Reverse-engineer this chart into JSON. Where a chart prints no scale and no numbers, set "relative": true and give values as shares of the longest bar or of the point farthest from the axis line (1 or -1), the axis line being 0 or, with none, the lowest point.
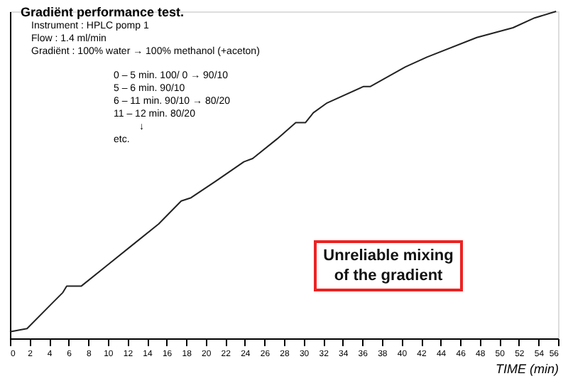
{
  "chart_data": {
    "type": "line",
    "relative": true,
    "title": "Gradiënt performance test.",
    "xlabel": "TIME (min)",
    "annotations": [
      "Instrument      : HPLC pomp 1",
      "Flow               : 1.4 ml/min",
      "Gradiënt          : 100% water → 100% methanol (+aceton)",
      "0 – 5 min.    100/ 0 → 90/10",
      "5 – 6 min.     90/10",
      "6 – 11 min.   90/10 → 80/20",
      "11 – 12 min.   80/20",
      "↓",
      "etc.",
      "Unreliable mixing of the gradient"
    ],
    "xlim": [
      0,
      56
    ],
    "xticks": [
      0,
      2,
      4,
      6,
      8,
      10,
      12,
      14,
      16,
      18,
      20,
      22,
      24,
      26,
      28,
      30,
      32,
      34,
      36,
      38,
      40,
      42,
      44,
      46,
      48,
      50,
      52,
      54,
      56
    ],
    "grid": false,
    "legend": false,
    "marker": "none",
    "line_style": "solid",
    "series": [
      {
        "color": "#222222",
        "x": [
          0,
          1.75,
          4.4,
          5.4,
          5.8,
          6.6,
          7.3,
          9.8,
          12.7,
          15.2,
          17.5,
          18.5,
          21.0,
          23.9,
          24.8,
          27.3,
          29.2,
          30.2,
          31.0,
          32.4,
          36.1,
          36.8,
          40.4,
          42.6,
          47.7,
          51.4,
          53.6,
          55.8
        ],
        "values": [
          0.02,
          0.03,
          0.11,
          0.14,
          0.16,
          0.16,
          0.16,
          0.22,
          0.29,
          0.35,
          0.42,
          0.43,
          0.48,
          0.54,
          0.55,
          0.61,
          0.66,
          0.66,
          0.69,
          0.72,
          0.77,
          0.77,
          0.83,
          0.86,
          0.92,
          0.95,
          0.98,
          1.0
        ]
      }
    ]
  }
}
